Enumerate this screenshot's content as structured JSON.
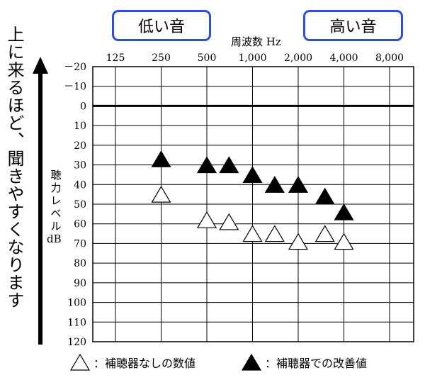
{
  "badges": {
    "low": "低い音",
    "high": "高い音"
  },
  "side_caption": "上に来るほど、聞きやすくなります",
  "chart_data": {
    "type": "scatter",
    "xlabel": "周波数 Hz",
    "ylabel": "聴力レベル",
    "ylabel_unit": "dB",
    "x_ticks": [
      "125",
      "250",
      "500",
      "1,000",
      "2,000",
      "4,000",
      "8,000"
    ],
    "y_ticks": [
      "－20",
      "－10",
      "0",
      "10",
      "20",
      "30",
      "40",
      "50",
      "60",
      "70",
      "80",
      "90",
      "100",
      "110",
      "120"
    ],
    "ylim": [
      -20,
      120
    ],
    "y_inverted": true,
    "reference_line": 0,
    "grid": true,
    "series": [
      {
        "name": "補聴器なしの数値",
        "marker": "open-triangle",
        "points": [
          {
            "x": 250,
            "y": 45
          },
          {
            "x": 500,
            "y": 58
          },
          {
            "x": 700,
            "y": 59
          },
          {
            "x": 1000,
            "y": 65
          },
          {
            "x": 1400,
            "y": 65
          },
          {
            "x": 2000,
            "y": 69
          },
          {
            "x": 3000,
            "y": 65
          },
          {
            "x": 4000,
            "y": 69
          }
        ]
      },
      {
        "name": "補聴器での改善値",
        "marker": "filled-triangle",
        "points": [
          {
            "x": 250,
            "y": 27
          },
          {
            "x": 500,
            "y": 30
          },
          {
            "x": 700,
            "y": 30
          },
          {
            "x": 1000,
            "y": 35
          },
          {
            "x": 1400,
            "y": 40
          },
          {
            "x": 2000,
            "y": 40
          },
          {
            "x": 3000,
            "y": 46
          },
          {
            "x": 4000,
            "y": 54
          }
        ]
      }
    ]
  },
  "legend": {
    "without_label": "：補聴器なしの数値",
    "with_label": "：補聴器での改善値"
  }
}
